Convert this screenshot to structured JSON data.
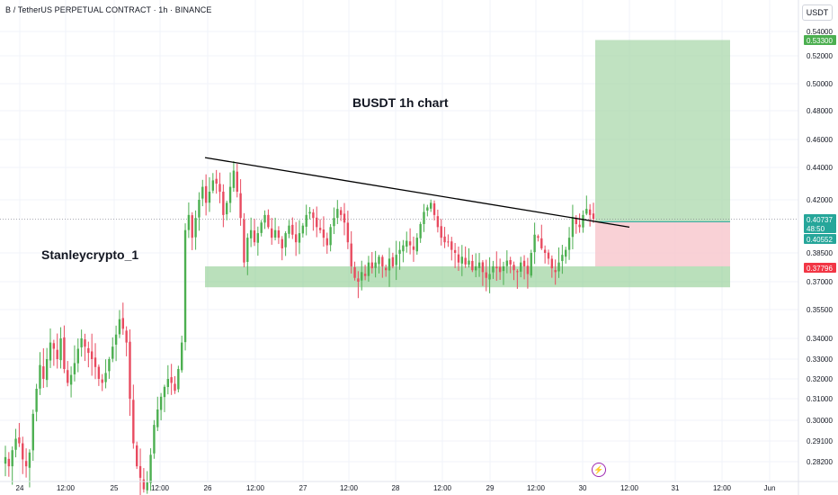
{
  "header": {
    "title": "B / TetherUS PERPETUAL CONTRACT · 1h · BINANCE"
  },
  "currency_button": "USDT",
  "annotations": {
    "chart_title": "BUSDT 1h chart",
    "watermark": "Stanleycrypto_1"
  },
  "icons": {
    "flash": "lightning-icon"
  },
  "colors": {
    "up": "#26a69a",
    "down": "#ef5350",
    "candle_up": "#4caf50",
    "candle_down": "#e84a5f",
    "target_zone": "#a5d6a7",
    "stop_zone": "#f8c6cc",
    "support_zone": "#81c784",
    "trendline": "#000000",
    "grid": "#f0f3fa",
    "axis_text": "#131722"
  },
  "chart_data": {
    "type": "candlestick",
    "title": "BUSDT 1h chart",
    "timeframe": "1h",
    "y_axis": {
      "range": [
        0.277,
        0.545
      ],
      "ticks": [
        "0.54000",
        "0.52000",
        "0.50000",
        "0.48000",
        "0.46000",
        "0.44000",
        "0.42000",
        "0.38500",
        "0.37000",
        "0.35500",
        "0.34000",
        "0.33000",
        "0.32000",
        "0.31000",
        "0.30000",
        "0.29100",
        "0.28200"
      ]
    },
    "x_axis": {
      "ticks": [
        "24",
        "12:00",
        "25",
        "12:00",
        "26",
        "12:00",
        "27",
        "12:00",
        "28",
        "12:00",
        "29",
        "12:00",
        "30",
        "12:00",
        "31",
        "12:00",
        "Jun"
      ]
    },
    "price_labels": [
      {
        "label": "0.53300",
        "value": 0.533,
        "type": "target"
      },
      {
        "label": "0.40737",
        "value": 0.40737,
        "type": "last-price"
      },
      {
        "label": "48:50",
        "value": 0.4045,
        "type": "countdown"
      },
      {
        "label": "0.40552",
        "value": 0.40552,
        "type": "entry"
      },
      {
        "label": "0.37796",
        "value": 0.37796,
        "type": "stop"
      }
    ],
    "position": {
      "type": "long",
      "entry": 0.40552,
      "stop": 0.37796,
      "target": 0.533
    },
    "support_zone": {
      "top": 0.378,
      "bottom": 0.367
    },
    "trendline": {
      "start": 0.447,
      "end": 0.402
    },
    "current_price": 0.40737,
    "closes": [
      0.284,
      0.28,
      0.287,
      0.292,
      0.29,
      0.283,
      0.28,
      0.286,
      0.303,
      0.315,
      0.327,
      0.32,
      0.33,
      0.338,
      0.335,
      0.33,
      0.34,
      0.325,
      0.318,
      0.322,
      0.328,
      0.335,
      0.34,
      0.336,
      0.333,
      0.33,
      0.326,
      0.32,
      0.318,
      0.323,
      0.33,
      0.336,
      0.342,
      0.35,
      0.345,
      0.338,
      0.31,
      0.29,
      0.28,
      0.275,
      0.27,
      0.273,
      0.285,
      0.298,
      0.305,
      0.311,
      0.316,
      0.32,
      0.318,
      0.314,
      0.325,
      0.338,
      0.4,
      0.41,
      0.395,
      0.408,
      0.42,
      0.428,
      0.418,
      0.425,
      0.432,
      0.43,
      0.425,
      0.41,
      0.418,
      0.428,
      0.438,
      0.425,
      0.408,
      0.38,
      0.395,
      0.4,
      0.392,
      0.398,
      0.405,
      0.41,
      0.402,
      0.395,
      0.4,
      0.395,
      0.388,
      0.398,
      0.403,
      0.397,
      0.392,
      0.398,
      0.403,
      0.41,
      0.412,
      0.408,
      0.402,
      0.4,
      0.395,
      0.39,
      0.402,
      0.408,
      0.414,
      0.41,
      0.405,
      0.392,
      0.378,
      0.372,
      0.37,
      0.375,
      0.373,
      0.38,
      0.377,
      0.38,
      0.383,
      0.378,
      0.376,
      0.382,
      0.378,
      0.384,
      0.387,
      0.39,
      0.393,
      0.39,
      0.387,
      0.395,
      0.404,
      0.412,
      0.415,
      0.418,
      0.41,
      0.402,
      0.395,
      0.392,
      0.392,
      0.387,
      0.385,
      0.38,
      0.383,
      0.379,
      0.381,
      0.376,
      0.378,
      0.38,
      0.375,
      0.372,
      0.374,
      0.378,
      0.377,
      0.375,
      0.378,
      0.381,
      0.379,
      0.376,
      0.375,
      0.38,
      0.378,
      0.374,
      0.385,
      0.397,
      0.395,
      0.388,
      0.385,
      0.382,
      0.377,
      0.375,
      0.38,
      0.384,
      0.387,
      0.395,
      0.408,
      0.404,
      0.402,
      0.41,
      0.414,
      0.41,
      0.40737
    ]
  }
}
